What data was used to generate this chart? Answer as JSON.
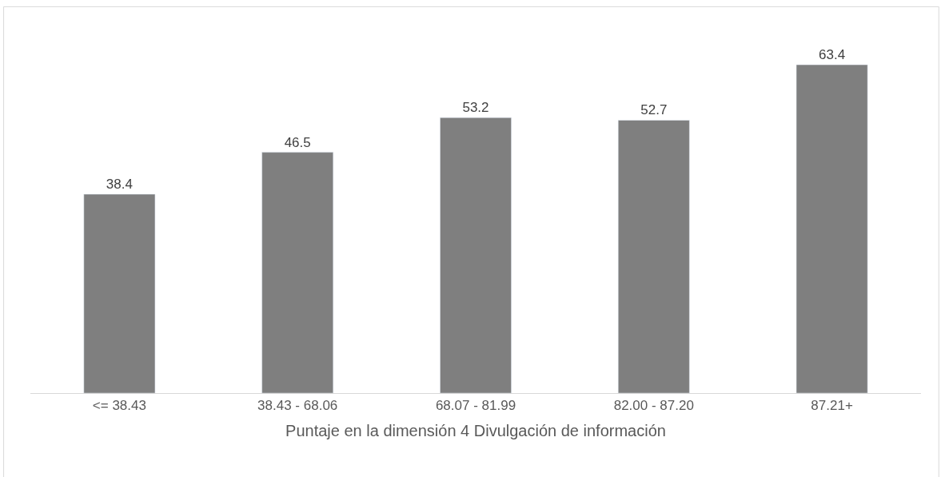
{
  "chart_data": {
    "type": "bar",
    "xlabel": "Puntaje en la dimensión 4 Divulgación de información",
    "categories": [
      "<= 38.43",
      "38.43 - 68.06",
      "68.07 - 81.99",
      "82.00 - 87.20",
      "87.21+"
    ],
    "values": [
      38.4,
      46.5,
      53.2,
      52.7,
      63.4
    ],
    "color": "#7f7f7f",
    "data_labels": true
  }
}
